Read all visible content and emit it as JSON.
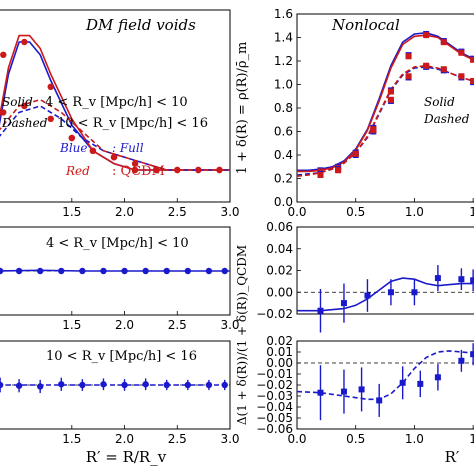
{
  "chart_data": [
    {
      "type": "line",
      "title": "DM field voids",
      "xlim": [
        0.8,
        3.0
      ],
      "x_ticks": [
        "1.5",
        "2.0",
        "2.5",
        "3.0"
      ],
      "legend": {
        "solid_label": "Solid",
        "solid_range": "4 < R_v [Mpc/h] < 10",
        "dashed_label": "Dashed",
        "dashed_range": "10 < R_v [Mpc/h] < 16",
        "blue_label": "Blue",
        "blue_value": ": Full",
        "red_label": "Red",
        "red_value": ": QCDM"
      },
      "series": [
        {
          "name": "Full, solid",
          "color": "#1a1acc",
          "style": "solid",
          "x": [
            0.8,
            0.9,
            1.0,
            1.1,
            1.2,
            1.3,
            1.5,
            1.7,
            1.9,
            2.1,
            2.3,
            2.5,
            2.7,
            2.9,
            3.0
          ],
          "y": [
            1.06,
            1.15,
            1.2,
            1.2,
            1.18,
            1.14,
            1.07,
            1.03,
            1.01,
            1.0,
            1.0,
            1.0,
            1.0,
            1.0,
            1.0
          ]
        },
        {
          "name": "QCDM, solid",
          "color": "#cc1a1a",
          "style": "solid",
          "x": [
            0.8,
            0.9,
            1.0,
            1.1,
            1.2,
            1.3,
            1.5,
            1.7,
            1.9,
            2.1,
            2.3,
            2.5,
            2.7,
            2.9,
            3.0
          ],
          "y": [
            1.07,
            1.16,
            1.21,
            1.21,
            1.19,
            1.15,
            1.08,
            1.03,
            1.01,
            1.0,
            1.0,
            1.0,
            1.0,
            1.0,
            1.0
          ]
        },
        {
          "name": "Full, dashed",
          "color": "#1a1acc",
          "style": "dashed",
          "x": [
            0.8,
            1.0,
            1.2,
            1.4,
            1.6,
            1.8,
            2.0,
            2.2,
            2.4,
            2.6,
            2.8,
            3.0
          ],
          "y": [
            1.05,
            1.09,
            1.1,
            1.08,
            1.05,
            1.03,
            1.02,
            1.01,
            1.0,
            1.0,
            1.0,
            1.0
          ]
        },
        {
          "name": "QCDM, dashed",
          "color": "#cc1a1a",
          "style": "dashed",
          "x": [
            0.8,
            1.0,
            1.2,
            1.4,
            1.6,
            1.8,
            2.0,
            2.2,
            2.4,
            2.6,
            2.8,
            3.0
          ],
          "y": [
            1.06,
            1.1,
            1.11,
            1.09,
            1.06,
            1.03,
            1.02,
            1.01,
            1.0,
            1.0,
            1.0,
            1.0
          ]
        }
      ],
      "points": [
        {
          "color": "#cc1a1a",
          "x": [
            0.85,
            1.05,
            1.3,
            1.5,
            1.7,
            1.9,
            2.1,
            2.3,
            2.5,
            2.7,
            2.9
          ],
          "y": [
            1.18,
            1.2,
            1.13,
            1.05,
            1.03,
            1.02,
            1.0,
            1.0,
            1.0,
            1.0,
            1.0
          ]
        },
        {
          "color": "#cc1a1a",
          "x": [
            0.85,
            1.05,
            1.3,
            1.5,
            1.7,
            1.9,
            2.1,
            2.3,
            2.5,
            2.7,
            2.9
          ],
          "y": [
            1.09,
            1.1,
            1.08,
            1.05,
            1.03,
            1.02,
            1.01,
            1.0,
            1.0,
            1.0,
            1.0
          ]
        }
      ]
    },
    {
      "type": "line",
      "title": "Nonlocal",
      "xlim": [
        0.0,
        1.55
      ],
      "ylim": [
        0.0,
        1.6
      ],
      "x_ticks": [
        "0.0",
        "0.5",
        "1.0",
        "1"
      ],
      "y_ticks": [
        "0.0",
        "0.2",
        "0.4",
        "0.6",
        "0.8",
        "1.0",
        "1.2",
        "1.4",
        "1.6"
      ],
      "ylabel": "1 + δ(R) = ρ(R)/ρ̄_m",
      "legend": {
        "solid_label": "Solid",
        "dashed_label": "Dashed"
      },
      "series": [
        {
          "name": "Full, solid",
          "color": "#1a1acc",
          "style": "solid",
          "x": [
            0.0,
            0.1,
            0.2,
            0.3,
            0.4,
            0.5,
            0.6,
            0.7,
            0.8,
            0.9,
            1.0,
            1.1,
            1.2,
            1.3,
            1.4,
            1.5
          ],
          "y": [
            0.27,
            0.27,
            0.28,
            0.3,
            0.35,
            0.45,
            0.62,
            0.88,
            1.16,
            1.36,
            1.43,
            1.44,
            1.41,
            1.34,
            1.27,
            1.22
          ]
        },
        {
          "name": "QCDM, solid",
          "color": "#cc1a1a",
          "style": "solid",
          "x": [
            0.0,
            0.1,
            0.2,
            0.3,
            0.4,
            0.5,
            0.6,
            0.7,
            0.8,
            0.9,
            1.0,
            1.1,
            1.2,
            1.3,
            1.4,
            1.5
          ],
          "y": [
            0.26,
            0.26,
            0.27,
            0.29,
            0.34,
            0.44,
            0.61,
            0.86,
            1.14,
            1.34,
            1.41,
            1.42,
            1.4,
            1.33,
            1.26,
            1.21
          ]
        },
        {
          "name": "Full, dashed",
          "color": "#1a1acc",
          "style": "dashed",
          "x": [
            0.0,
            0.1,
            0.2,
            0.3,
            0.4,
            0.5,
            0.6,
            0.7,
            0.8,
            0.9,
            1.0,
            1.1,
            1.2,
            1.3,
            1.4,
            1.5
          ],
          "y": [
            0.23,
            0.24,
            0.25,
            0.28,
            0.33,
            0.42,
            0.55,
            0.75,
            0.95,
            1.08,
            1.14,
            1.15,
            1.13,
            1.1,
            1.06,
            1.03
          ]
        },
        {
          "name": "QCDM, dashed",
          "color": "#cc1a1a",
          "style": "dashed",
          "x": [
            0.0,
            0.1,
            0.2,
            0.3,
            0.4,
            0.5,
            0.6,
            0.7,
            0.8,
            0.9,
            1.0,
            1.1,
            1.2,
            1.3,
            1.4,
            1.5
          ],
          "y": [
            0.22,
            0.23,
            0.25,
            0.28,
            0.33,
            0.42,
            0.56,
            0.76,
            0.96,
            1.09,
            1.15,
            1.16,
            1.14,
            1.1,
            1.06,
            1.03
          ]
        }
      ],
      "points": [
        {
          "color": "#1a1acc",
          "x": [
            0.2,
            0.35,
            0.5,
            0.65,
            0.8,
            0.95,
            1.1,
            1.25,
            1.4,
            1.5
          ],
          "y": [
            0.27,
            0.3,
            0.42,
            0.63,
            0.95,
            1.25,
            1.43,
            1.37,
            1.28,
            1.22
          ]
        },
        {
          "color": "#cc1a1a",
          "x": [
            0.2,
            0.35,
            0.5,
            0.65,
            0.8,
            0.95,
            1.1,
            1.25,
            1.4,
            1.5
          ],
          "y": [
            0.26,
            0.29,
            0.41,
            0.62,
            0.94,
            1.24,
            1.42,
            1.36,
            1.27,
            1.21
          ]
        },
        {
          "color": "#1a1acc",
          "x": [
            0.2,
            0.35,
            0.5,
            0.65,
            0.8,
            0.95,
            1.1,
            1.25,
            1.4,
            1.5
          ],
          "y": [
            0.24,
            0.28,
            0.4,
            0.6,
            0.86,
            1.06,
            1.15,
            1.12,
            1.06,
            1.02
          ]
        },
        {
          "color": "#cc1a1a",
          "x": [
            0.2,
            0.35,
            0.5,
            0.65,
            0.8,
            0.95,
            1.1,
            1.25,
            1.4,
            1.5
          ],
          "y": [
            0.23,
            0.27,
            0.41,
            0.61,
            0.87,
            1.07,
            1.16,
            1.13,
            1.07,
            1.03
          ]
        }
      ]
    },
    {
      "type": "line",
      "label": "4 < R_v [Mpc/h] < 10",
      "xlim": [
        0.8,
        3.0
      ],
      "x_ticks": [
        "1.5",
        "2.0",
        "2.5",
        "3.0"
      ],
      "ylim": [
        -0.06,
        0.06
      ],
      "series": [
        {
          "name": "ratio",
          "color": "#1a1acc",
          "style": "solid",
          "x": [
            0.8,
            1.2,
            1.6,
            2.0,
            2.4,
            2.8,
            3.0
          ],
          "y": [
            0.0,
            0.001,
            0.0,
            0.0,
            0.0,
            0.0,
            0.0
          ]
        }
      ],
      "points": [
        {
          "color": "#1a1acc",
          "x": [
            0.82,
            1.0,
            1.2,
            1.4,
            1.6,
            1.8,
            2.0,
            2.2,
            2.4,
            2.6,
            2.8,
            2.95
          ],
          "y": [
            0.0,
            0.0,
            0.0,
            0.0,
            0.0,
            0.0,
            0.0,
            0.0,
            0.0,
            0.0,
            0.0,
            0.0
          ],
          "err": [
            0.004,
            0.003,
            0.003,
            0.003,
            0.003,
            0.003,
            0.003,
            0.003,
            0.003,
            0.003,
            0.003,
            0.003
          ]
        }
      ]
    },
    {
      "type": "line",
      "xlim": [
        0.0,
        1.55
      ],
      "ylim": [
        -0.02,
        0.06
      ],
      "x_ticks": [
        "0.0",
        "0.5",
        "1.0",
        "1"
      ],
      "y_ticks": [
        "−0.02",
        "0.00",
        "0.02",
        "0.04",
        "0.06"
      ],
      "series": [
        {
          "name": "ratio",
          "color": "#1a1acc",
          "style": "solid",
          "x": [
            0.0,
            0.2,
            0.4,
            0.5,
            0.6,
            0.7,
            0.8,
            0.9,
            1.0,
            1.1,
            1.2,
            1.3,
            1.4,
            1.5
          ],
          "y": [
            -0.017,
            -0.017,
            -0.015,
            -0.012,
            -0.006,
            0.002,
            0.01,
            0.013,
            0.012,
            0.008,
            0.006,
            0.007,
            0.008,
            0.008
          ]
        }
      ],
      "points": [
        {
          "color": "#1a1acc",
          "x": [
            0.2,
            0.4,
            0.6,
            0.8,
            1.0,
            1.2,
            1.4,
            1.5
          ],
          "y": [
            -0.017,
            -0.01,
            -0.003,
            0.0,
            0.0,
            0.013,
            0.012,
            0.011
          ],
          "err": [
            0.02,
            0.018,
            0.015,
            0.012,
            0.012,
            0.012,
            0.01,
            0.01
          ]
        }
      ]
    },
    {
      "type": "line",
      "label": "10 < R_v [Mpc/h] < 16",
      "xlim": [
        0.8,
        3.0
      ],
      "x_ticks": [
        "1.5",
        "2.0",
        "2.5",
        "3.0"
      ],
      "xlabel": "R′ = R/R_v",
      "ylim": [
        -0.06,
        0.06
      ],
      "series": [
        {
          "name": "ratio",
          "color": "#1a1acc",
          "style": "dashed",
          "x": [
            0.8,
            1.2,
            1.6,
            2.0,
            2.4,
            2.8,
            3.0
          ],
          "y": [
            0.0,
            0.0,
            0.0,
            0.0,
            0.0,
            0.0,
            0.0
          ]
        }
      ],
      "points": [
        {
          "color": "#1a1acc",
          "x": [
            0.82,
            1.0,
            1.2,
            1.4,
            1.6,
            1.8,
            2.0,
            2.2,
            2.4,
            2.6,
            2.8,
            2.95
          ],
          "y": [
            0.0,
            -0.001,
            -0.002,
            0.001,
            0.0,
            0.001,
            0.0,
            0.001,
            0.0,
            0.0,
            0.0,
            0.0
          ],
          "err": [
            0.01,
            0.009,
            0.009,
            0.009,
            0.008,
            0.008,
            0.008,
            0.008,
            0.007,
            0.007,
            0.007,
            0.007
          ]
        }
      ]
    },
    {
      "type": "line",
      "xlim": [
        0.0,
        1.55
      ],
      "ylim": [
        -0.06,
        0.02
      ],
      "x_ticks": [
        "0.0",
        "0.5",
        "1.0",
        "1"
      ],
      "y_ticks": [
        "−0.06",
        "−0.05",
        "−0.04",
        "−0.03",
        "−0.02",
        "−0.01",
        "0.00",
        "0.01",
        "0.02"
      ],
      "xlabel": "R′",
      "ylabel": "Δ(1 + δ(R))/(1 + δ(R))_QCDM",
      "series": [
        {
          "name": "ratio",
          "color": "#1a1acc",
          "style": "dashed",
          "x": [
            0.0,
            0.2,
            0.4,
            0.6,
            0.7,
            0.8,
            0.9,
            1.0,
            1.1,
            1.2,
            1.3,
            1.4,
            1.5
          ],
          "y": [
            -0.026,
            -0.027,
            -0.03,
            -0.033,
            -0.033,
            -0.028,
            -0.018,
            -0.005,
            0.005,
            0.01,
            0.011,
            0.01,
            0.009
          ]
        }
      ],
      "points": [
        {
          "color": "#1a1acc",
          "x": [
            0.2,
            0.4,
            0.55,
            0.7,
            0.9,
            1.05,
            1.2,
            1.4,
            1.5
          ],
          "y": [
            -0.027,
            -0.026,
            -0.024,
            -0.034,
            -0.018,
            -0.019,
            -0.013,
            0.002,
            0.008
          ],
          "err": [
            0.025,
            0.02,
            0.02,
            0.015,
            0.015,
            0.012,
            0.012,
            0.01,
            0.01
          ]
        }
      ]
    }
  ]
}
